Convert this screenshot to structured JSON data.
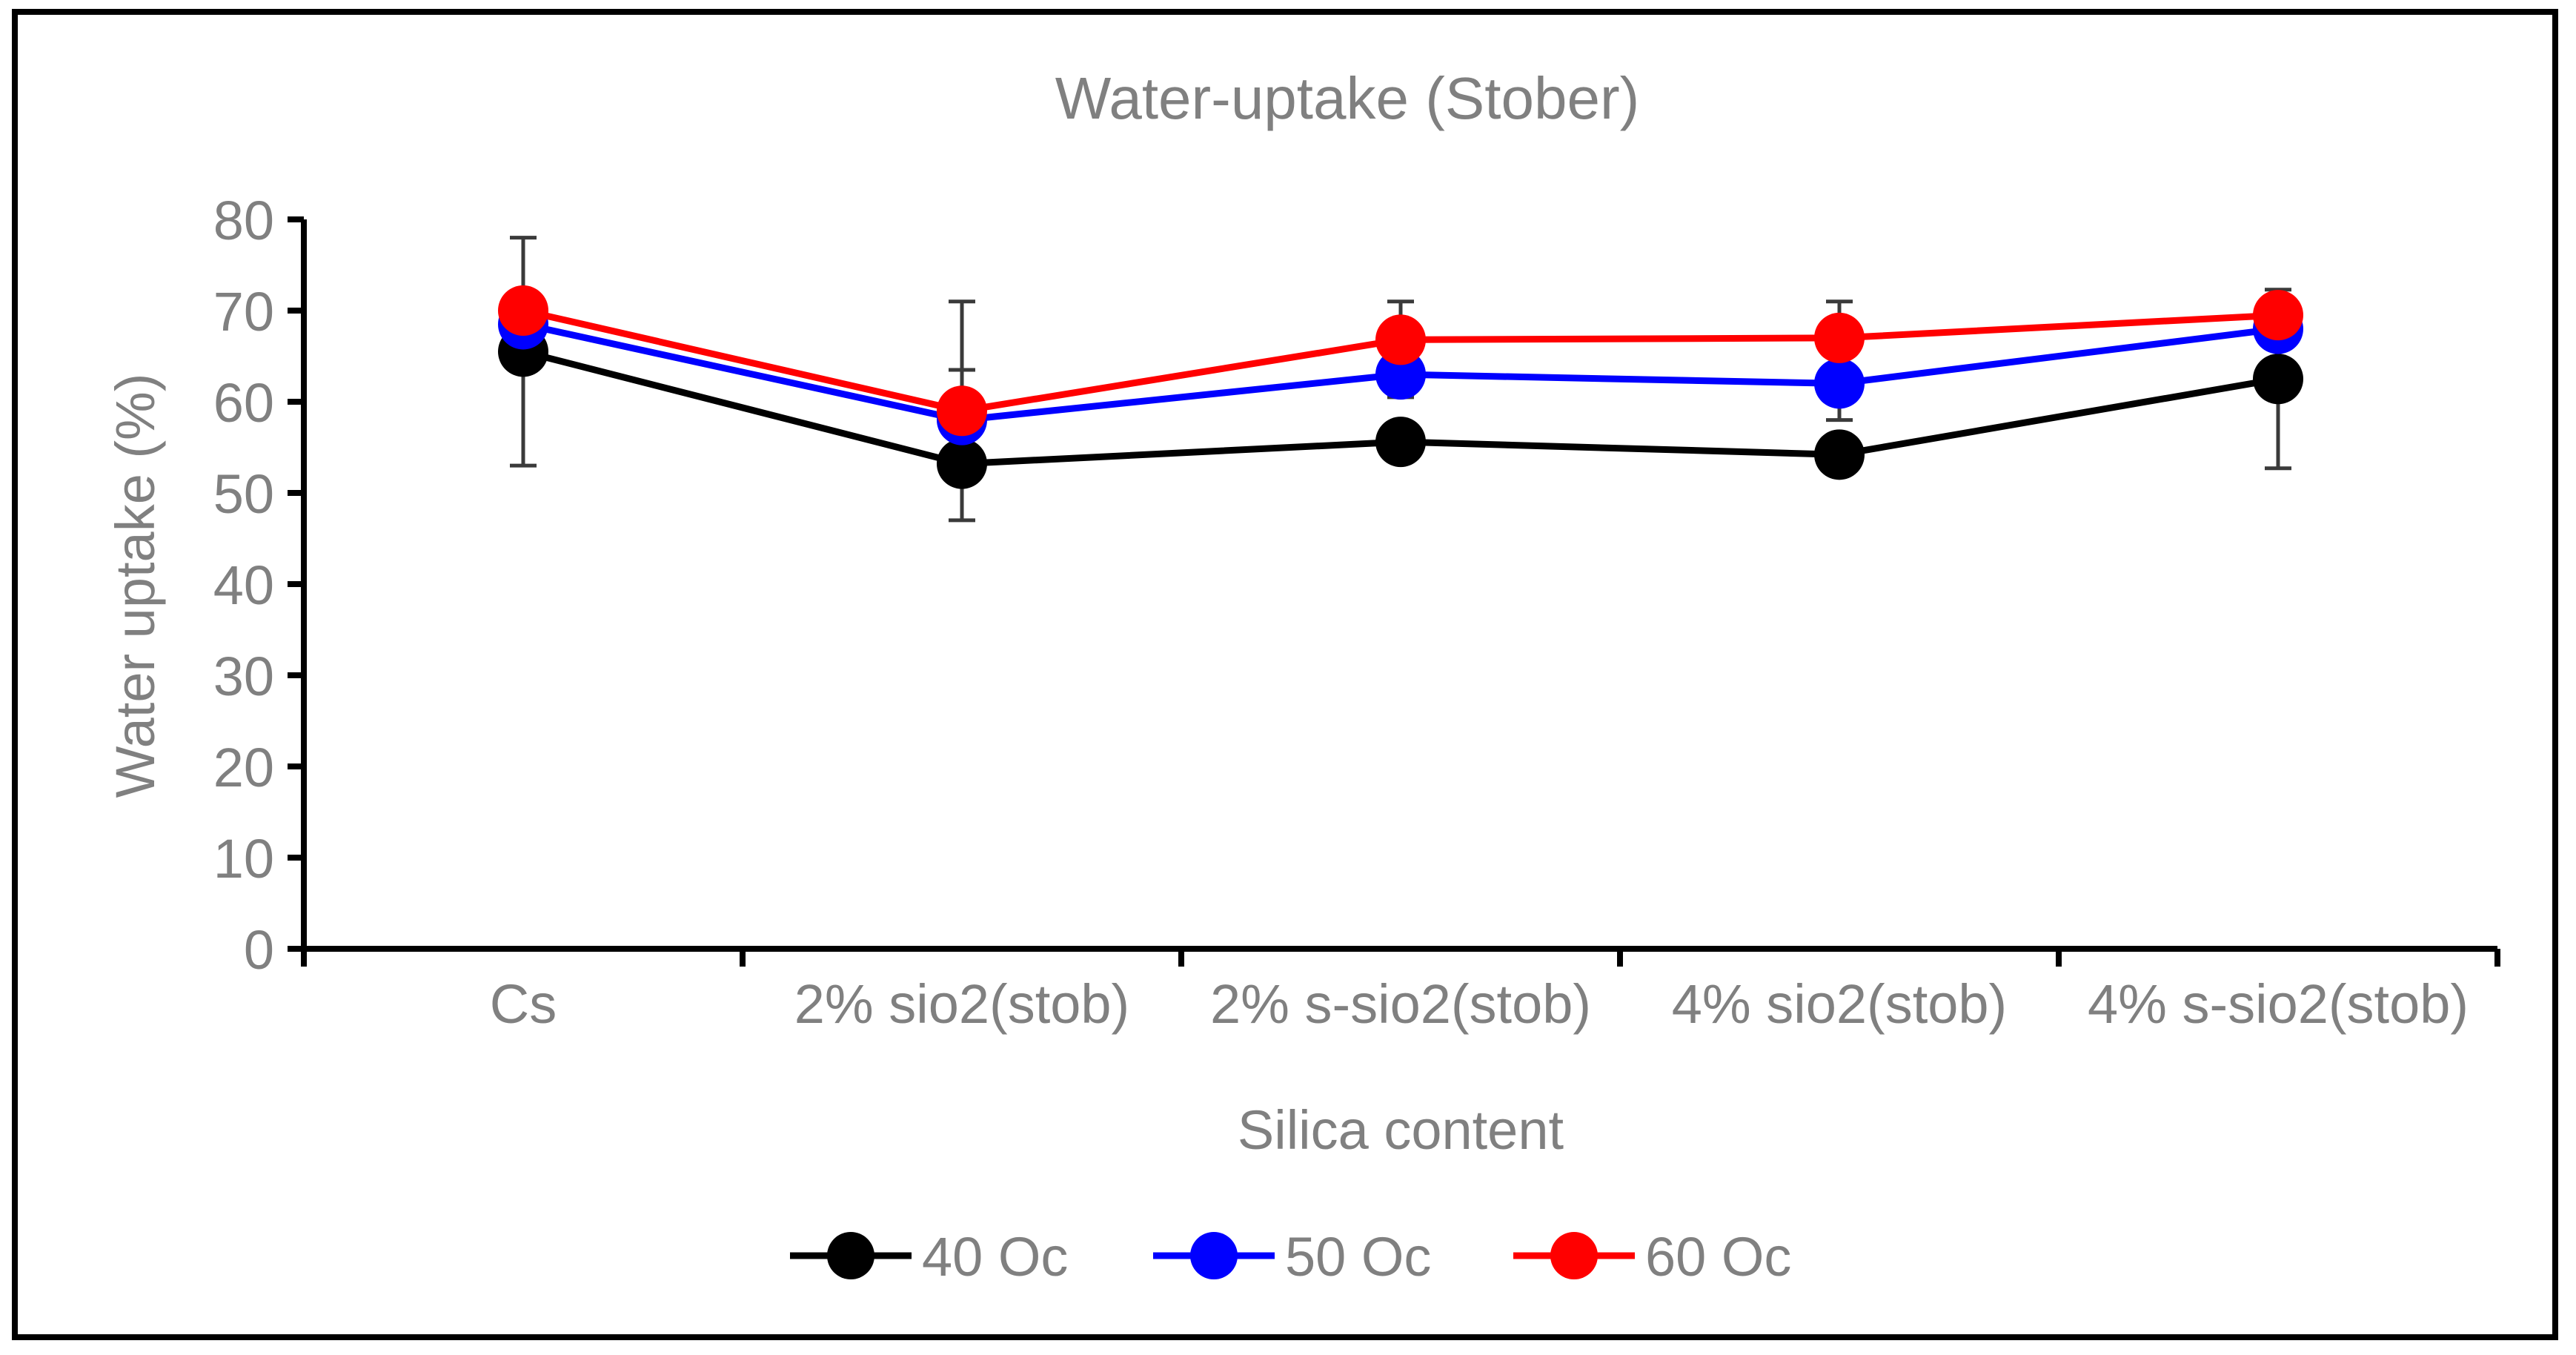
{
  "chart_data": {
    "type": "line",
    "title": "Water-uptake (Stober)",
    "xlabel": "Silica content",
    "ylabel": "Water uptake (%)",
    "ylim": [
      0,
      80
    ],
    "yticks": [
      0,
      10,
      20,
      30,
      40,
      50,
      60,
      70,
      80
    ],
    "categories": [
      "Cs",
      "2% sio2(stob)",
      "2% s-sio2(stob)",
      "4% sio2(stob)",
      "4% s-sio2(stob)"
    ],
    "series": [
      {
        "name": "40 Oc",
        "color": "#000000",
        "values": [
          65.5,
          53.2,
          55.6,
          54.2,
          62.5
        ],
        "errors": [
          12.5,
          1.5,
          1.8,
          1.8,
          9.8
        ]
      },
      {
        "name": "50 Oc",
        "color": "#0000FF",
        "values": [
          68.5,
          58.0,
          63.0,
          62.0,
          68.0
        ],
        "errors": [
          2.0,
          5.5,
          2.5,
          4.0,
          1.5
        ]
      },
      {
        "name": "60 Oc",
        "color": "#FF0000",
        "values": [
          70.0,
          59.0,
          66.8,
          67.0,
          69.5
        ],
        "errors": [
          1.5,
          12.0,
          4.2,
          4.0,
          1.5
        ]
      }
    ],
    "legend_position": "bottom",
    "grid": false
  }
}
